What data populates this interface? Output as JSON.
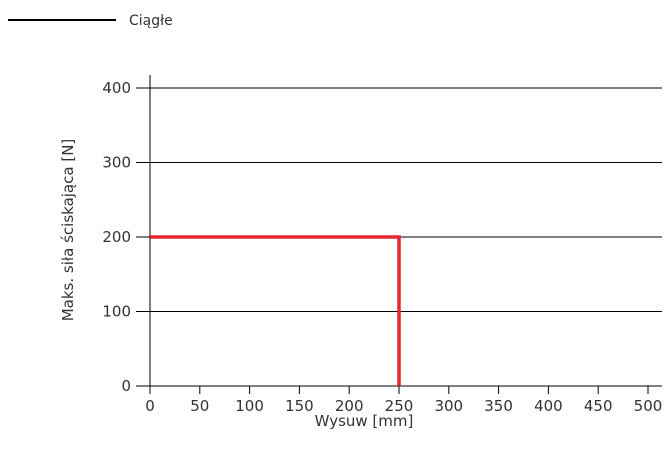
{
  "chart_data": {
    "type": "line",
    "xlabel": "Wysuw [mm]",
    "ylabel": "Maks. siła ściskająca [N]",
    "xlim": [
      0,
      500
    ],
    "ylim": [
      0,
      400
    ],
    "x_ticks": [
      "0",
      "50",
      "100",
      "150",
      "200",
      "250",
      "300",
      "350",
      "400",
      "450",
      "500"
    ],
    "y_ticks": [
      "0",
      "100",
      "200",
      "300",
      "400"
    ],
    "grid": "horizontal",
    "legend": {
      "placement": "top-left",
      "entries": [
        {
          "label": "Ciągłe",
          "color": "#000000"
        }
      ]
    },
    "series": [
      {
        "color": "#e3262f",
        "points": [
          [
            0,
            200
          ],
          [
            250,
            200
          ],
          [
            250,
            0
          ]
        ]
      }
    ]
  }
}
